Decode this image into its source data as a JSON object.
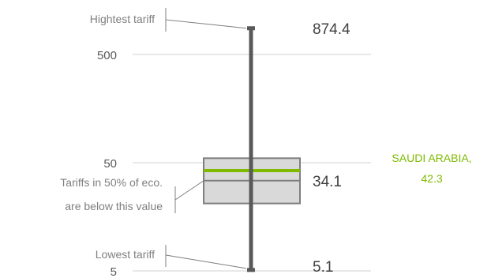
{
  "chart_data": {
    "type": "box",
    "y_scale": "log",
    "ylim": [
      5,
      900
    ],
    "y_ticks": [
      {
        "value": 500,
        "label": "500"
      },
      {
        "value": 50,
        "label": "50"
      },
      {
        "value": 5,
        "label": "5"
      }
    ],
    "distribution": {
      "max": 874.4,
      "q3": 55,
      "median": 34.1,
      "q1": 21,
      "min": 5.1
    },
    "value_labels": {
      "max": "874.4",
      "median": "34.1",
      "min": "5.1"
    },
    "annotations": {
      "max": "Hightest tariff",
      "median_line1": "Tariffs in 50% of eco.",
      "median_line2": "are below this value",
      "min": "Lowest tariff"
    },
    "highlight": {
      "name": "SAUDI ARABIA,",
      "value": 42.3,
      "value_label": "42.3",
      "color": "#7fba00"
    },
    "colors": {
      "whisker": "#595959",
      "box_fill": "#d9d9d9",
      "box_stroke": "#7f7f7f",
      "grid": "#d9d9d9",
      "leader": "#7f7f7f"
    },
    "grid": true,
    "legend": "none"
  }
}
